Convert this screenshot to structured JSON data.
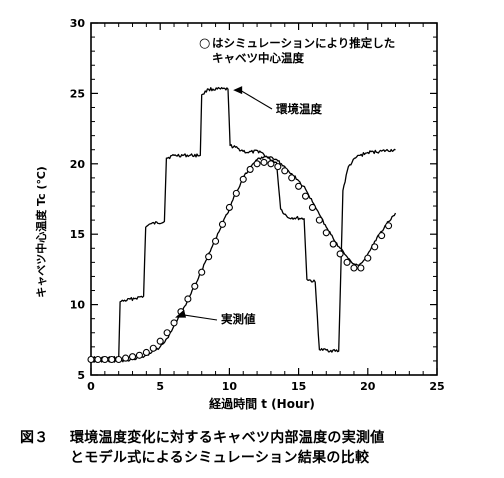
{
  "caption": {
    "number": "図３",
    "line1": "環境温度変化に対するキャベツ内部温度の実測値",
    "line2": "とモデル式によるシミュレーション結果の比較"
  },
  "chart_data": {
    "type": "line",
    "xlabel": "経過時間 t (Hour)",
    "ylabel": "キャベツ中心温度 Tc (℃)",
    "xlim": [
      0,
      25
    ],
    "ylim": [
      5,
      30
    ],
    "xticks": [
      0,
      5,
      10,
      15,
      20,
      25
    ],
    "yticks": [
      5,
      10,
      15,
      20,
      25,
      30
    ],
    "grid": false,
    "legend": {
      "symbol": "○",
      "line1": "はシミュレーションにより推定した",
      "line2": "キャベツ中心温度",
      "placement": "top-right"
    },
    "annotations": [
      {
        "text": "環境温度",
        "target_series": "ambient",
        "x": 10.2,
        "y": 25.3
      },
      {
        "text": "実測値",
        "target_series": "measured",
        "x": 6.0,
        "y": 9.0
      }
    ],
    "series": [
      {
        "id": "ambient",
        "style": "line",
        "points": [
          [
            0,
            6.2
          ],
          [
            2.0,
            6.2
          ],
          [
            2.1,
            10.2
          ],
          [
            3.8,
            10.6
          ],
          [
            3.95,
            15.5
          ],
          [
            4.2,
            15.7
          ],
          [
            5.3,
            15.9
          ],
          [
            5.45,
            20.4
          ],
          [
            6.0,
            20.6
          ],
          [
            7.9,
            20.6
          ],
          [
            8.0,
            24.9
          ],
          [
            8.5,
            25.3
          ],
          [
            9.9,
            25.3
          ],
          [
            10.05,
            21.3
          ],
          [
            11.3,
            20.8
          ],
          [
            12.2,
            20.9
          ],
          [
            12.8,
            20.4
          ],
          [
            13.4,
            20.1
          ],
          [
            13.7,
            16.8
          ],
          [
            14.2,
            16.2
          ],
          [
            15.4,
            16.1
          ],
          [
            15.6,
            11.8
          ],
          [
            16.2,
            11.6
          ],
          [
            16.5,
            6.8
          ],
          [
            17.9,
            6.7
          ],
          [
            18.2,
            18.1
          ],
          [
            18.6,
            19.8
          ],
          [
            19.2,
            20.5
          ],
          [
            20.0,
            20.8
          ],
          [
            21.0,
            20.9
          ],
          [
            22.0,
            21.0
          ]
        ]
      },
      {
        "id": "measured",
        "style": "line",
        "points": [
          [
            0,
            6.0
          ],
          [
            1,
            6.0
          ],
          [
            2,
            6.0
          ],
          [
            3,
            6.1
          ],
          [
            4,
            6.4
          ],
          [
            5,
            7.0
          ],
          [
            5.5,
            7.6
          ],
          [
            6,
            8.5
          ],
          [
            7,
            10.3
          ],
          [
            8,
            12.4
          ],
          [
            9,
            14.7
          ],
          [
            10,
            16.8
          ],
          [
            10.5,
            18.0
          ],
          [
            11,
            19.0
          ],
          [
            11.5,
            19.8
          ],
          [
            12,
            20.3
          ],
          [
            12.5,
            20.5
          ],
          [
            13,
            20.5
          ],
          [
            13.5,
            20.2
          ],
          [
            14,
            19.8
          ],
          [
            14.5,
            19.3
          ],
          [
            15,
            18.8
          ],
          [
            15.5,
            18.2
          ],
          [
            16,
            17.3
          ],
          [
            16.5,
            16.4
          ],
          [
            17,
            15.5
          ],
          [
            17.5,
            14.7
          ],
          [
            18,
            14.0
          ],
          [
            18.5,
            13.4
          ],
          [
            19,
            12.9
          ],
          [
            19.3,
            12.8
          ],
          [
            19.6,
            13.0
          ],
          [
            20,
            13.6
          ],
          [
            20.5,
            14.5
          ],
          [
            21,
            15.2
          ],
          [
            21.5,
            15.9
          ],
          [
            22,
            16.5
          ]
        ]
      },
      {
        "id": "simulated",
        "style": "markers",
        "marker": "open-circle",
        "points": [
          [
            0,
            6.1
          ],
          [
            0.5,
            6.1
          ],
          [
            1,
            6.1
          ],
          [
            1.5,
            6.1
          ],
          [
            2,
            6.1
          ],
          [
            2.5,
            6.2
          ],
          [
            3,
            6.3
          ],
          [
            3.5,
            6.4
          ],
          [
            4,
            6.6
          ],
          [
            4.5,
            6.9
          ],
          [
            5,
            7.4
          ],
          [
            5.5,
            8.0
          ],
          [
            6,
            8.7
          ],
          [
            6.5,
            9.5
          ],
          [
            7,
            10.4
          ],
          [
            7.5,
            11.3
          ],
          [
            8,
            12.3
          ],
          [
            8.5,
            13.4
          ],
          [
            9,
            14.5
          ],
          [
            9.5,
            15.7
          ],
          [
            10,
            16.9
          ],
          [
            10.5,
            17.9
          ],
          [
            11,
            18.9
          ],
          [
            11.5,
            19.6
          ],
          [
            12,
            20.0
          ],
          [
            12.5,
            20.1
          ],
          [
            13,
            20.0
          ],
          [
            13.5,
            19.8
          ],
          [
            14,
            19.5
          ],
          [
            14.5,
            19.0
          ],
          [
            15,
            18.4
          ],
          [
            15.5,
            17.7
          ],
          [
            16,
            16.9
          ],
          [
            16.5,
            16.0
          ],
          [
            17,
            15.1
          ],
          [
            17.5,
            14.3
          ],
          [
            18,
            13.6
          ],
          [
            18.5,
            13.0
          ],
          [
            19,
            12.6
          ],
          [
            19.5,
            12.6
          ],
          [
            20,
            13.3
          ],
          [
            20.5,
            14.1
          ],
          [
            21,
            14.9
          ],
          [
            21.5,
            15.6
          ]
        ]
      }
    ]
  }
}
